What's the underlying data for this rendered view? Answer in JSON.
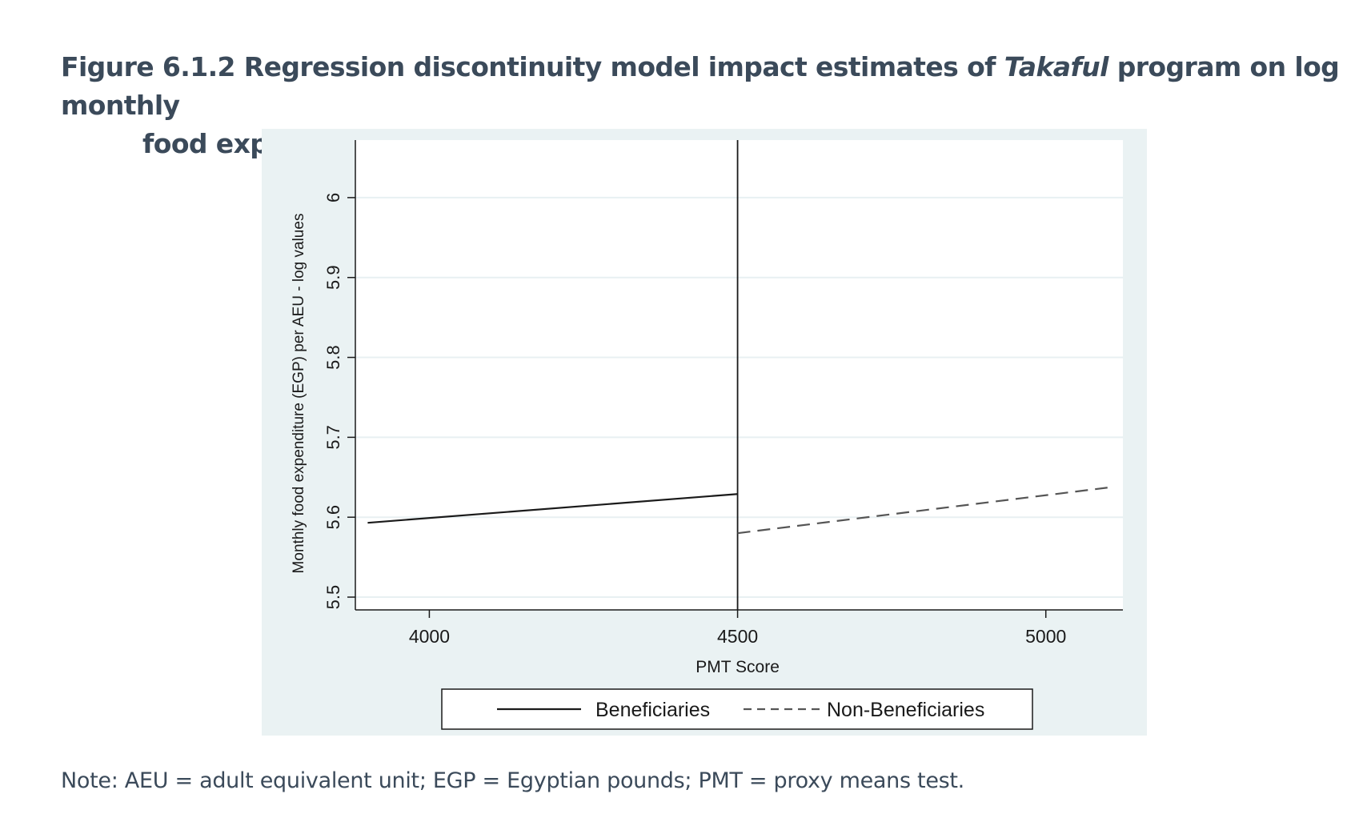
{
  "figure": {
    "title_prefix": "Figure 6.1.2 Regression discontinuity model impact estimates of ",
    "title_italic": "Takaful",
    "title_suffix": " program on log monthly",
    "title_line2": "food expenditure per adult equivalent unit",
    "note": "Note: AEU = adult equivalent unit; EGP = Egyptian pounds; PMT = proxy means test."
  },
  "chart_data": {
    "type": "line",
    "title": "",
    "xlabel": "PMT Score",
    "ylabel": "Monthly food expenditure (EGP) per AEU - log values",
    "xlim": [
      3880,
      5125
    ],
    "ylim": [
      5.484,
      6.072
    ],
    "xticks": [
      4000,
      4500,
      5000
    ],
    "yticks": [
      5.5,
      5.6,
      5.7,
      5.8,
      5.9,
      6
    ],
    "ytick_labels": [
      "5.5",
      "5.6",
      "5.7",
      "5.8",
      "5.9",
      "6"
    ],
    "xtick_labels": [
      "4000",
      "4500",
      "5000"
    ],
    "cutoff": 4500,
    "grid": true,
    "legend_position": "bottom",
    "series": [
      {
        "name": "Beneficiaries",
        "style": "solid",
        "color": "#1a1a1a",
        "x": [
          3900,
          4500
        ],
        "y": [
          5.593,
          5.629
        ]
      },
      {
        "name": "Non-Beneficiaries",
        "style": "dashed",
        "color": "#555555",
        "x": [
          4500,
          5100
        ],
        "y": [
          5.58,
          5.637
        ]
      }
    ],
    "colors": {
      "panel_background": "#eaf2f3",
      "plot_background": "#ffffff",
      "gridline": "#e8f0f2",
      "axis": "#1a1a1a"
    }
  }
}
